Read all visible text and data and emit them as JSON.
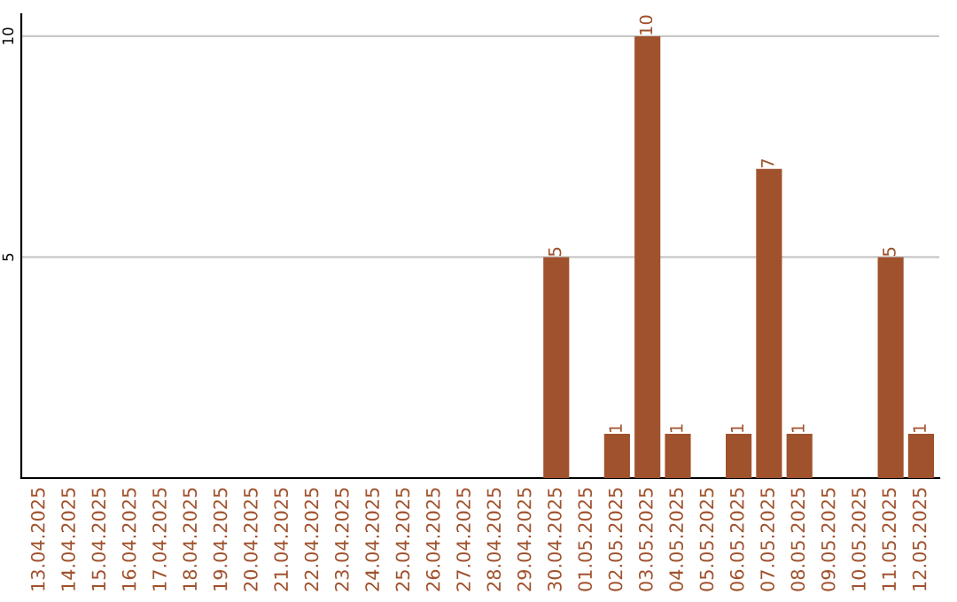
{
  "chart_data": {
    "type": "bar",
    "categories": [
      "13.04.2025",
      "14.04.2025",
      "15.04.2025",
      "16.04.2025",
      "17.04.2025",
      "18.04.2025",
      "19.04.2025",
      "20.04.2025",
      "21.04.2025",
      "22.04.2025",
      "23.04.2025",
      "24.04.2025",
      "25.04.2025",
      "26.04.2025",
      "27.04.2025",
      "28.04.2025",
      "29.04.2025",
      "30.04.2025",
      "01.05.2025",
      "02.05.2025",
      "03.05.2025",
      "04.05.2025",
      "05.05.2025",
      "06.05.2025",
      "07.05.2025",
      "08.05.2025",
      "09.05.2025",
      "10.05.2025",
      "11.05.2025",
      "12.05.2025"
    ],
    "values": [
      0,
      0,
      0,
      0,
      0,
      0,
      0,
      0,
      0,
      0,
      0,
      0,
      0,
      0,
      0,
      0,
      0,
      5,
      0,
      1,
      10,
      1,
      0,
      1,
      7,
      1,
      0,
      0,
      5,
      1
    ],
    "value_labels": [
      null,
      null,
      null,
      null,
      null,
      null,
      null,
      null,
      null,
      null,
      null,
      null,
      null,
      null,
      null,
      null,
      null,
      "5",
      null,
      "1",
      "10",
      "1",
      null,
      "1",
      "7",
      "1",
      null,
      null,
      "5",
      "1"
    ],
    "color": "#a0522d",
    "ylim": [
      0,
      10.5
    ],
    "yticks": [
      5,
      10
    ],
    "grid": "y"
  }
}
